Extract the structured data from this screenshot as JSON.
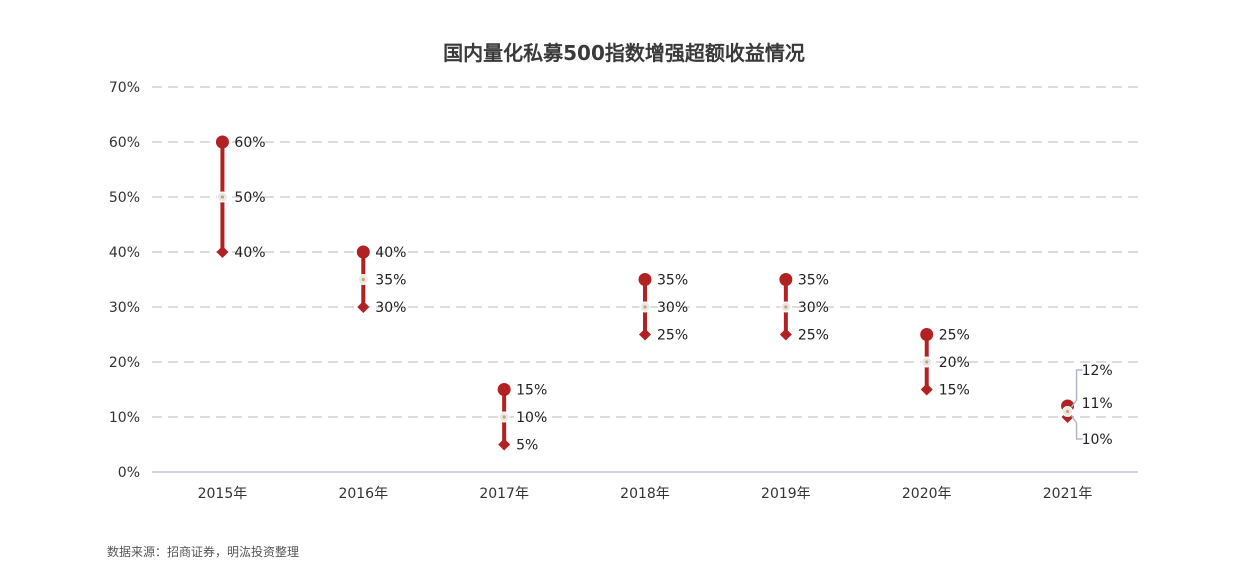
{
  "chart_data": {
    "type": "range",
    "title": "国内量化私募500指数增强超额收益情况",
    "categories": [
      "2015年",
      "2016年",
      "2017年",
      "2018年",
      "2019年",
      "2020年",
      "2021年"
    ],
    "series": [
      {
        "name": "",
        "values": [
          60,
          40,
          15,
          35,
          35,
          25,
          12
        ]
      },
      {
        "name": "",
        "values": [
          50,
          35,
          10,
          30,
          30,
          20,
          11
        ]
      },
      {
        "name": "",
        "values": [
          40,
          30,
          5,
          25,
          25,
          15,
          10
        ]
      }
    ],
    "value_labels": {
      "high": [
        "60%",
        "40%",
        "15%",
        "35%",
        "35%",
        "25%",
        "12%"
      ],
      "mid": [
        "50%",
        "35%",
        "10%",
        "30%",
        "30%",
        "20%",
        "11%"
      ],
      "low": [
        "40%",
        "30%",
        "5%",
        "25%",
        "25%",
        "15%",
        "10%"
      ]
    },
    "yticks": [
      "0%",
      "10%",
      "20%",
      "30%",
      "40%",
      "50%",
      "60%",
      "70%"
    ],
    "ylim": [
      0,
      70
    ],
    "xlabel": "",
    "ylabel": "",
    "grid": true,
    "legend": "none",
    "colors": {
      "range": "#b22222",
      "mid_marker": "#e8e8e8",
      "mid_marker_dot": "#c8a86a",
      "grid": "#dddddd",
      "axis": "#cfd3e0",
      "leader": "#b0b8c8"
    }
  },
  "source_note": "数据来源：招商证券，明汯投资整理"
}
